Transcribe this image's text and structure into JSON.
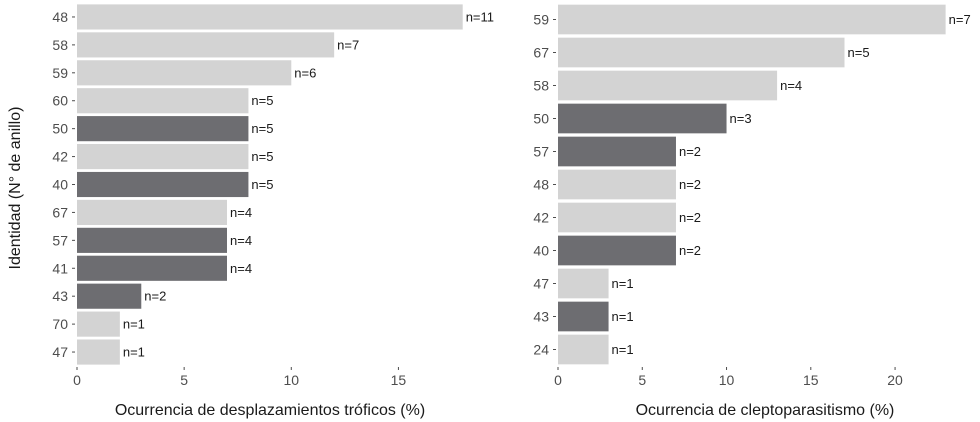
{
  "shared": {
    "ylabel": "Identidad (N° de anillo)",
    "colors": {
      "light": "#d3d3d3",
      "dark": "#6d6d71",
      "tick": "#4d4d4d",
      "text": "#1a1a1a"
    }
  },
  "chart_data": [
    {
      "type": "bar",
      "orientation": "horizontal",
      "xlabel": "Ocurrencia de desplazamientos tróficos (%)",
      "xlim": [
        0,
        18.2
      ],
      "xticks": [
        0,
        5,
        10,
        15
      ],
      "categories": [
        "48",
        "58",
        "59",
        "60",
        "50",
        "42",
        "40",
        "67",
        "57",
        "41",
        "43",
        "70",
        "47"
      ],
      "values": [
        18.0,
        12.0,
        10.0,
        8.0,
        8.0,
        8.0,
        8.0,
        7.0,
        7.0,
        7.0,
        3.0,
        2.0,
        2.0
      ],
      "labels": [
        "n=11",
        "n=7",
        "n=6",
        "n=5",
        "n=5",
        "n=5",
        "n=5",
        "n=4",
        "n=4",
        "n=4",
        "n=2",
        "n=1",
        "n=1"
      ],
      "shade": [
        "light",
        "light",
        "light",
        "light",
        "dark",
        "light",
        "dark",
        "light",
        "dark",
        "dark",
        "dark",
        "light",
        "light"
      ]
    },
    {
      "type": "bar",
      "orientation": "horizontal",
      "xlabel": "Ocurrencia de cleptoparasitismo (%)",
      "xlim": [
        0,
        23.2
      ],
      "xticks": [
        0,
        5,
        10,
        15,
        20
      ],
      "categories": [
        "59",
        "67",
        "58",
        "50",
        "57",
        "48",
        "42",
        "40",
        "47",
        "43",
        "24"
      ],
      "values": [
        23.0,
        17.0,
        13.0,
        10.0,
        7.0,
        7.0,
        7.0,
        7.0,
        3.0,
        3.0,
        3.0
      ],
      "labels": [
        "n=7",
        "n=5",
        "n=4",
        "n=3",
        "n=2",
        "n=2",
        "n=2",
        "n=2",
        "n=1",
        "n=1",
        "n=1"
      ],
      "shade": [
        "light",
        "light",
        "light",
        "dark",
        "dark",
        "light",
        "light",
        "dark",
        "light",
        "dark",
        "light"
      ]
    }
  ]
}
